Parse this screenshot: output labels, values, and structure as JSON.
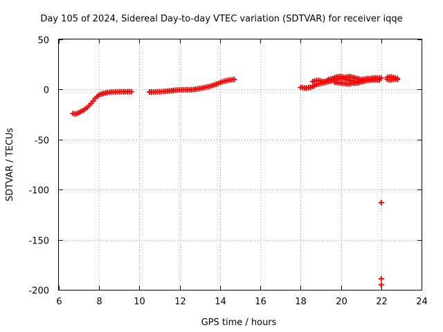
{
  "chart_data": {
    "type": "scatter",
    "title": "Day 105 of 2024, Sidereal Day-to-day VTEC variation (SDTVAR) for receiver iqqe",
    "xlabel": "GPS time / hours",
    "ylabel": "SDTVAR / TECUs",
    "xlim": [
      6,
      24
    ],
    "ylim": [
      -200,
      50
    ],
    "xticks": [
      6,
      8,
      10,
      12,
      14,
      16,
      18,
      20,
      22,
      24
    ],
    "yticks": [
      -200,
      -150,
      -100,
      -50,
      0,
      50
    ],
    "xtick_labels": [
      "6",
      "8",
      "10",
      "12",
      "14",
      "16",
      "18",
      "20",
      "22",
      "24"
    ],
    "ytick_labels": [
      "-200",
      "-150",
      "-100",
      "-50",
      "0",
      "50"
    ],
    "grid": true,
    "marker": "+",
    "series_color": "#ff0000",
    "series": [
      {
        "name": "SDTVAR",
        "segments": [
          [
            [
              6.7,
              -24
            ],
            [
              6.8,
              -24.5
            ],
            [
              6.9,
              -24
            ],
            [
              7.0,
              -23
            ],
            [
              7.1,
              -22
            ],
            [
              7.2,
              -21
            ],
            [
              7.3,
              -19.5
            ],
            [
              7.4,
              -18
            ],
            [
              7.5,
              -16
            ],
            [
              7.6,
              -14
            ],
            [
              7.7,
              -11.5
            ],
            [
              7.8,
              -9
            ],
            [
              7.9,
              -7
            ],
            [
              8.0,
              -5.5
            ],
            [
              8.1,
              -4.5
            ],
            [
              8.2,
              -4
            ],
            [
              8.3,
              -3.5
            ],
            [
              8.4,
              -3
            ],
            [
              8.5,
              -2.8
            ],
            [
              8.6,
              -2.6
            ],
            [
              8.7,
              -2.5
            ],
            [
              8.8,
              -2.4
            ],
            [
              8.9,
              -2.3
            ],
            [
              9.0,
              -2.3
            ],
            [
              9.1,
              -2.2
            ],
            [
              9.2,
              -2.2
            ],
            [
              9.3,
              -2.2
            ],
            [
              9.4,
              -2.2
            ],
            [
              9.5,
              -2.2
            ],
            [
              9.6,
              -2.2
            ]
          ],
          [
            [
              10.5,
              -2.5
            ],
            [
              10.6,
              -2.5
            ],
            [
              10.7,
              -2.5
            ],
            [
              10.8,
              -2.4
            ],
            [
              10.9,
              -2.3
            ],
            [
              11.0,
              -2.2
            ],
            [
              11.1,
              -2.1
            ],
            [
              11.2,
              -2
            ],
            [
              11.3,
              -1.8
            ],
            [
              11.4,
              -1.6
            ],
            [
              11.5,
              -1.4
            ],
            [
              11.6,
              -1.2
            ],
            [
              11.7,
              -1
            ],
            [
              11.8,
              -0.8
            ],
            [
              11.9,
              -0.6
            ],
            [
              12.0,
              -0.5
            ],
            [
              12.1,
              -0.4
            ],
            [
              12.2,
              -0.3
            ],
            [
              12.3,
              -0.3
            ],
            [
              12.4,
              -0.3
            ],
            [
              12.5,
              -0.3
            ],
            [
              12.6,
              -0.2
            ],
            [
              12.7,
              0
            ],
            [
              12.8,
              0.3
            ],
            [
              12.9,
              0.7
            ],
            [
              13.0,
              1
            ],
            [
              13.1,
              1.4
            ],
            [
              13.2,
              1.8
            ],
            [
              13.3,
              2.2
            ],
            [
              13.4,
              2.7
            ],
            [
              13.5,
              3.2
            ],
            [
              13.6,
              3.8
            ],
            [
              13.7,
              4.5
            ],
            [
              13.8,
              5.2
            ],
            [
              13.9,
              6
            ],
            [
              14.0,
              6.8
            ],
            [
              14.1,
              7.5
            ],
            [
              14.2,
              8.2
            ],
            [
              14.3,
              8.8
            ],
            [
              14.4,
              9.2
            ],
            [
              14.5,
              9.5
            ],
            [
              14.6,
              9.8
            ],
            [
              14.7,
              10
            ]
          ],
          [
            [
              18.0,
              2
            ],
            [
              18.1,
              1.8
            ],
            [
              18.2,
              1.5
            ],
            [
              18.3,
              1.5
            ],
            [
              18.4,
              1.8
            ],
            [
              18.5,
              2.2
            ],
            [
              18.6,
              3
            ],
            [
              18.7,
              4
            ],
            [
              18.8,
              5
            ],
            [
              18.9,
              5.5
            ],
            [
              19.0,
              6
            ],
            [
              19.1,
              6.5
            ],
            [
              19.2,
              7
            ],
            [
              19.3,
              7.5
            ],
            [
              19.4,
              8
            ],
            [
              19.5,
              8.5
            ],
            [
              19.6,
              9
            ],
            [
              19.7,
              9.5
            ],
            [
              19.8,
              10
            ],
            [
              19.9,
              10.5
            ],
            [
              20.0,
              11
            ],
            [
              20.1,
              11
            ],
            [
              20.2,
              10.5
            ],
            [
              20.3,
              10
            ],
            [
              20.4,
              9.5
            ],
            [
              20.5,
              9
            ],
            [
              20.6,
              8.5
            ],
            [
              20.7,
              8
            ],
            [
              20.8,
              8
            ],
            [
              20.9,
              8.5
            ],
            [
              21.0,
              9
            ],
            [
              21.1,
              9.5
            ],
            [
              21.2,
              10
            ],
            [
              21.3,
              10
            ],
            [
              21.4,
              10
            ],
            [
              21.5,
              10
            ],
            [
              21.6,
              10
            ],
            [
              21.7,
              10
            ],
            [
              21.8,
              10
            ],
            [
              21.9,
              10
            ]
          ],
          [
            [
              18.6,
              8
            ],
            [
              18.7,
              8.5
            ],
            [
              18.8,
              9
            ],
            [
              18.9,
              9
            ],
            [
              19.0,
              8.5
            ],
            [
              19.1,
              8
            ],
            [
              19.2,
              8
            ],
            [
              19.3,
              9
            ],
            [
              19.4,
              10
            ],
            [
              19.5,
              10.5
            ],
            [
              19.6,
              11
            ],
            [
              19.7,
              12
            ],
            [
              19.8,
              12.5
            ],
            [
              19.9,
              13
            ],
            [
              20.0,
              13
            ],
            [
              20.1,
              12.5
            ],
            [
              20.2,
              12
            ],
            [
              20.3,
              12.5
            ],
            [
              20.4,
              13
            ],
            [
              20.5,
              12.5
            ],
            [
              20.6,
              12
            ],
            [
              20.7,
              11.5
            ],
            [
              20.8,
              11
            ],
            [
              20.9,
              10.5
            ],
            [
              21.0,
              10
            ],
            [
              21.1,
              10
            ],
            [
              21.2,
              10.5
            ],
            [
              21.3,
              11
            ],
            [
              21.4,
              11
            ],
            [
              21.5,
              11
            ],
            [
              21.6,
              11.5
            ],
            [
              21.7,
              11.5
            ],
            [
              21.8,
              11.5
            ],
            [
              21.9,
              11.5
            ],
            [
              22.0,
              11.5
            ]
          ],
          [
            [
              19.7,
              7
            ],
            [
              19.8,
              7
            ],
            [
              19.9,
              6.5
            ],
            [
              20.0,
              6.5
            ],
            [
              20.1,
              6
            ],
            [
              20.2,
              6
            ],
            [
              20.3,
              5.5
            ],
            [
              20.4,
              5.5
            ],
            [
              20.5,
              6
            ],
            [
              20.6,
              6.5
            ],
            [
              20.7,
              6.5
            ],
            [
              20.8,
              6.5
            ],
            [
              20.9,
              7
            ],
            [
              21.0,
              7.5
            ],
            [
              21.1,
              8
            ],
            [
              21.2,
              8.5
            ],
            [
              21.3,
              9
            ],
            [
              21.4,
              9
            ],
            [
              21.5,
              9.5
            ],
            [
              21.6,
              9.5
            ],
            [
              21.7,
              9.5
            ],
            [
              21.8,
              9.5
            ],
            [
              21.9,
              9.5
            ]
          ],
          [
            [
              22.3,
              12
            ],
            [
              22.4,
              12.5
            ],
            [
              22.5,
              12.5
            ],
            [
              22.6,
              12
            ],
            [
              22.7,
              11.5
            ],
            [
              22.8,
              11
            ],
            [
              22.3,
              10
            ],
            [
              22.4,
              9.5
            ],
            [
              22.5,
              9.5
            ],
            [
              22.6,
              10
            ],
            [
              22.7,
              10.5
            ],
            [
              22.8,
              10
            ]
          ],
          [
            [
              22.0,
              -113
            ],
            [
              22.0,
              -189
            ],
            [
              22.0,
              -195
            ]
          ]
        ]
      }
    ]
  }
}
